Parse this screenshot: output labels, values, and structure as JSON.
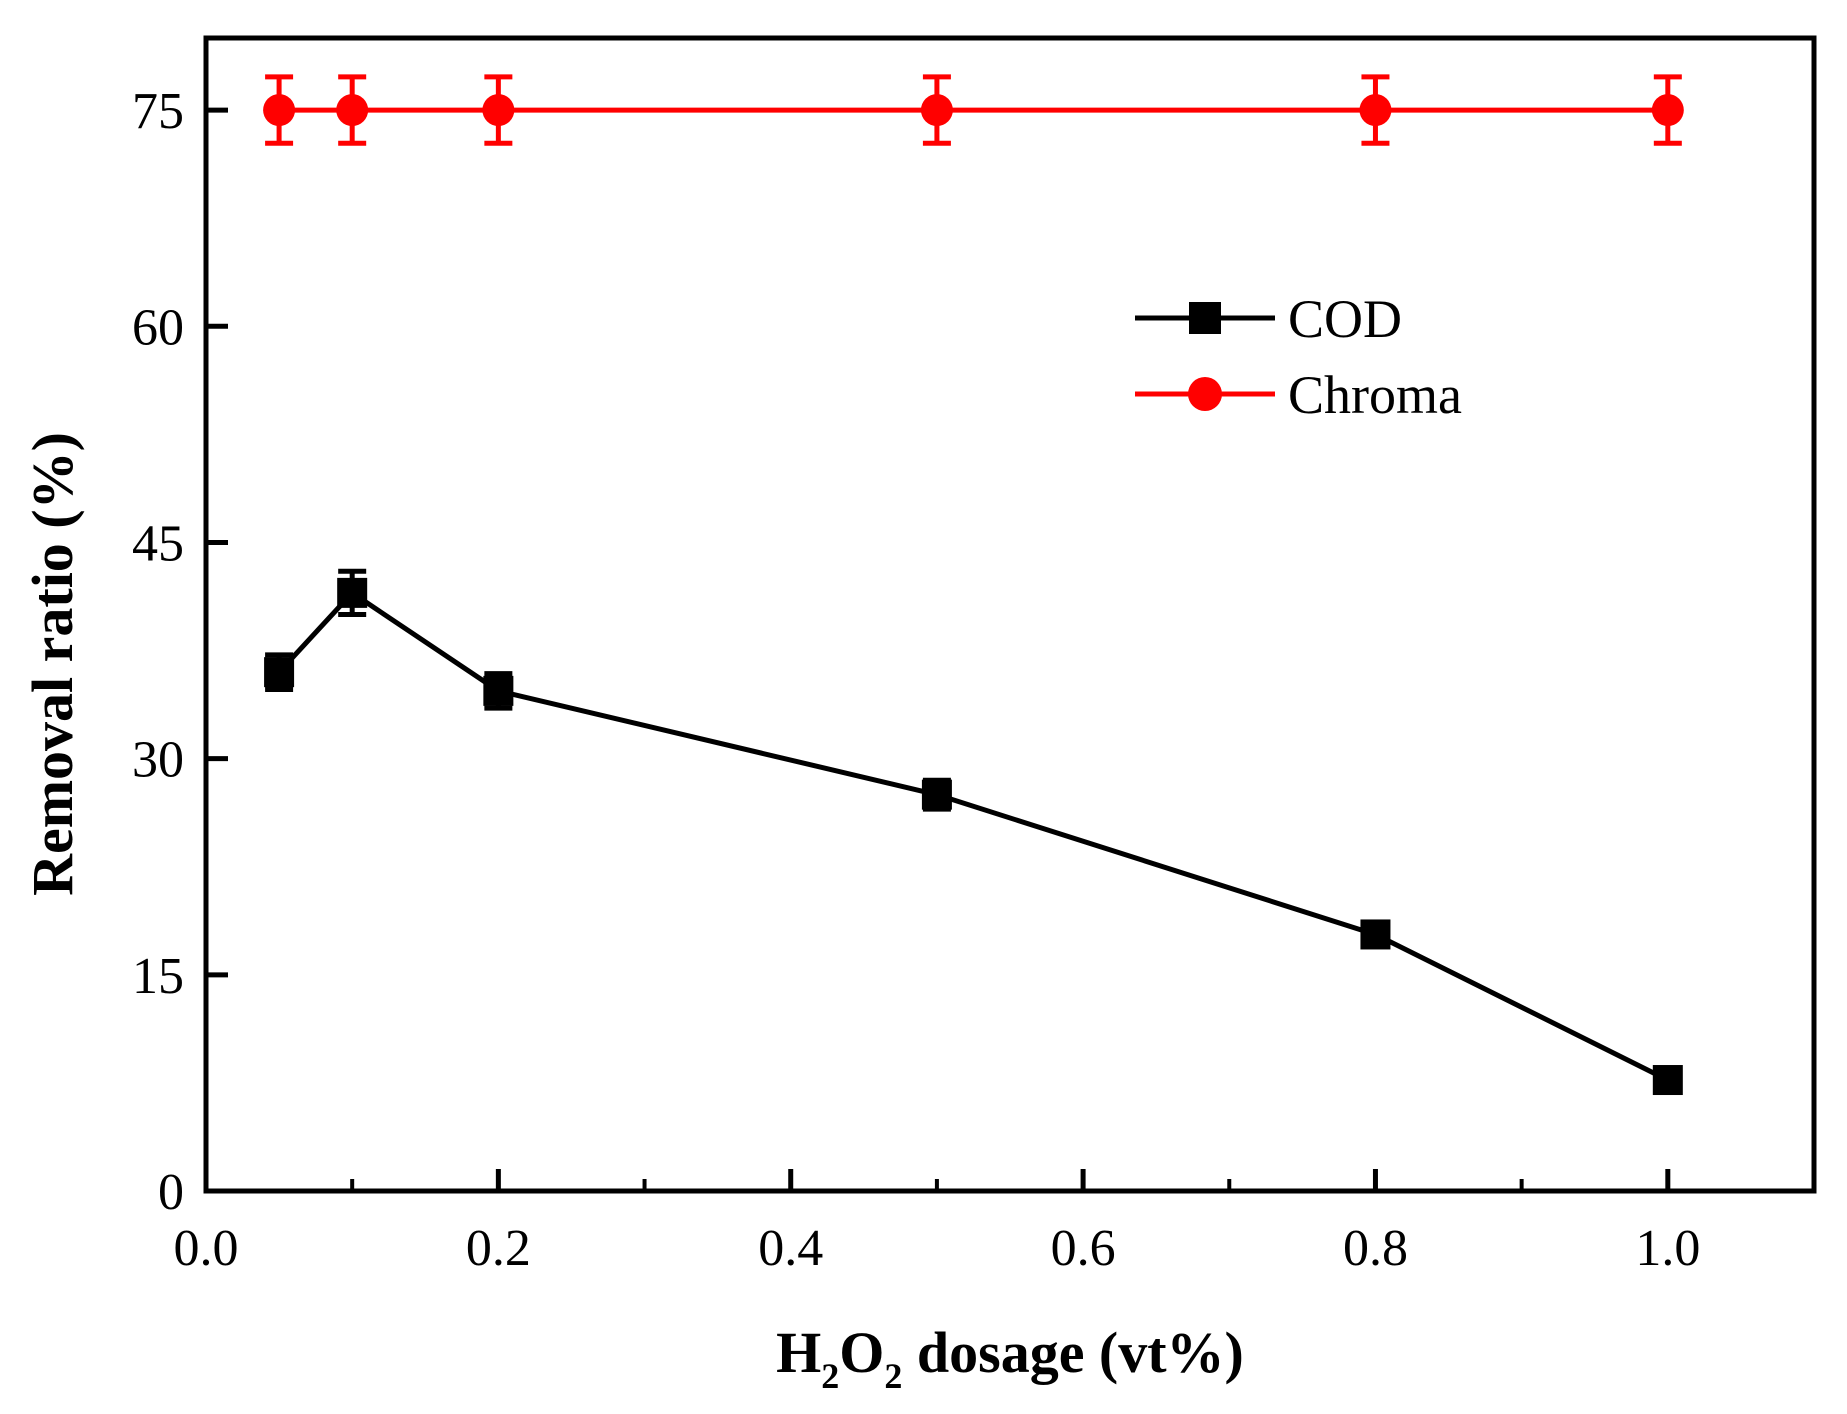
{
  "chart_data": {
    "type": "line",
    "title": "",
    "xlabel": {
      "prefix": "H",
      "sub1": "2",
      "mid": "O",
      "sub2": "2",
      "suffix": " dosage (vt%)"
    },
    "ylabel": "Removal ratio (%)",
    "xlim": [
      0.0,
      1.1
    ],
    "ylim": [
      0,
      80
    ],
    "x_ticks": [
      0.0,
      0.2,
      0.4,
      0.6,
      0.8,
      1.0
    ],
    "x_tick_labels": [
      "0.0",
      "0.2",
      "0.4",
      "0.6",
      "0.8",
      "1.0"
    ],
    "y_ticks": [
      0,
      15,
      30,
      45,
      60,
      75
    ],
    "y_tick_labels": [
      "0",
      "15",
      "30",
      "45",
      "60",
      "75"
    ],
    "x": [
      0.05,
      0.1,
      0.2,
      0.5,
      0.8,
      1.0
    ],
    "series": [
      {
        "name": "COD",
        "marker": "square",
        "color": "#000000",
        "values": [
          36.0,
          41.5,
          34.7,
          27.5,
          17.8,
          7.7
        ],
        "errors": [
          1.2,
          1.5,
          1.2,
          1.0,
          0.8,
          0.7
        ]
      },
      {
        "name": "Chroma",
        "marker": "circle",
        "color": "#ff0000",
        "values": [
          75.0,
          75.0,
          75.0,
          75.0,
          75.0,
          75.0
        ],
        "errors": [
          2.3,
          2.3,
          2.3,
          2.3,
          2.3,
          2.3
        ]
      }
    ],
    "legend_position": "upper-right",
    "grid": false
  }
}
